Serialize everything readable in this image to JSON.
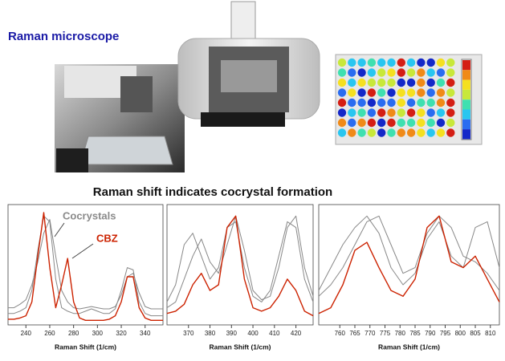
{
  "header": {
    "title": "Raman microscope"
  },
  "heading": "Raman shift indicates cocrystal formation",
  "annotations": {
    "cocrystals": "Cocrystals",
    "cbz": "CBZ"
  },
  "chart_data": [
    {
      "type": "line",
      "x_label": "Raman Shift (1/cm)",
      "x": [
        225,
        230,
        235,
        240,
        245,
        250,
        255,
        260,
        265,
        270,
        275,
        280,
        285,
        290,
        295,
        300,
        305,
        310,
        315,
        320,
        325,
        330,
        335,
        340,
        345,
        350,
        355
      ],
      "xlim": [
        225,
        355
      ],
      "xticks": [
        240,
        260,
        280,
        300,
        320,
        340
      ],
      "ylim": [
        0,
        1.05
      ],
      "series": [
        {
          "color": "#888888",
          "values": [
            0.1,
            0.1,
            0.12,
            0.15,
            0.3,
            0.65,
            0.95,
            0.9,
            0.4,
            0.15,
            0.12,
            0.1,
            0.1,
            0.12,
            0.14,
            0.12,
            0.1,
            0.1,
            0.14,
            0.3,
            0.5,
            0.48,
            0.2,
            0.1,
            0.08,
            0.08,
            0.08
          ]
        },
        {
          "color": "#888888",
          "values": [
            0.15,
            0.15,
            0.18,
            0.22,
            0.35,
            0.55,
            0.8,
            0.92,
            0.6,
            0.3,
            0.2,
            0.15,
            0.14,
            0.15,
            0.16,
            0.15,
            0.14,
            0.14,
            0.16,
            0.26,
            0.42,
            0.45,
            0.28,
            0.16,
            0.14,
            0.14,
            0.14
          ]
        },
        {
          "color": "#cc2200",
          "values": [
            0.05,
            0.05,
            0.06,
            0.08,
            0.2,
            0.6,
            0.98,
            0.5,
            0.15,
            0.35,
            0.58,
            0.2,
            0.06,
            0.04,
            0.04,
            0.04,
            0.04,
            0.05,
            0.08,
            0.2,
            0.42,
            0.42,
            0.15,
            0.06,
            0.04,
            0.04,
            0.04
          ]
        }
      ]
    },
    {
      "type": "line",
      "x_label": "Raman Shift (1/cm)",
      "x": [
        360,
        364,
        368,
        372,
        376,
        380,
        384,
        388,
        392,
        396,
        400,
        404,
        408,
        412,
        416,
        420,
        424,
        428
      ],
      "xlim": [
        360,
        428
      ],
      "xticks": [
        370,
        380,
        390,
        400,
        410,
        420
      ],
      "ylim": [
        0,
        1.05
      ],
      "series": [
        {
          "color": "#888888",
          "values": [
            0.2,
            0.35,
            0.7,
            0.8,
            0.6,
            0.4,
            0.5,
            0.85,
            0.9,
            0.5,
            0.25,
            0.2,
            0.3,
            0.6,
            0.9,
            0.85,
            0.4,
            0.2
          ]
        },
        {
          "color": "#888888",
          "values": [
            0.15,
            0.2,
            0.4,
            0.6,
            0.75,
            0.55,
            0.45,
            0.7,
            0.95,
            0.65,
            0.3,
            0.22,
            0.25,
            0.5,
            0.85,
            0.95,
            0.5,
            0.25
          ]
        },
        {
          "color": "#cc2200",
          "values": [
            0.1,
            0.12,
            0.18,
            0.35,
            0.45,
            0.3,
            0.35,
            0.85,
            0.95,
            0.4,
            0.15,
            0.12,
            0.15,
            0.25,
            0.4,
            0.3,
            0.12,
            0.08
          ]
        }
      ]
    },
    {
      "type": "line",
      "x_label": "Raman Shift (1/cm)",
      "x": [
        753,
        757,
        761,
        765,
        769,
        773,
        777,
        781,
        785,
        789,
        793,
        797,
        801,
        805,
        809,
        813
      ],
      "xlim": [
        753,
        813
      ],
      "xticks": [
        760,
        765,
        770,
        775,
        780,
        785,
        790,
        795,
        800,
        805,
        810
      ],
      "ylim": [
        0,
        1.05
      ],
      "series": [
        {
          "color": "#888888",
          "values": [
            0.3,
            0.5,
            0.7,
            0.85,
            0.95,
            0.8,
            0.5,
            0.35,
            0.45,
            0.75,
            0.9,
            0.6,
            0.5,
            0.85,
            0.9,
            0.5
          ]
        },
        {
          "color": "#888888",
          "values": [
            0.25,
            0.35,
            0.5,
            0.7,
            0.9,
            0.95,
            0.7,
            0.45,
            0.5,
            0.8,
            0.95,
            0.85,
            0.6,
            0.55,
            0.45,
            0.3
          ]
        },
        {
          "color": "#cc2200",
          "values": [
            0.1,
            0.15,
            0.35,
            0.65,
            0.72,
            0.5,
            0.3,
            0.25,
            0.4,
            0.85,
            0.95,
            0.55,
            0.5,
            0.6,
            0.4,
            0.2
          ]
        }
      ]
    }
  ]
}
